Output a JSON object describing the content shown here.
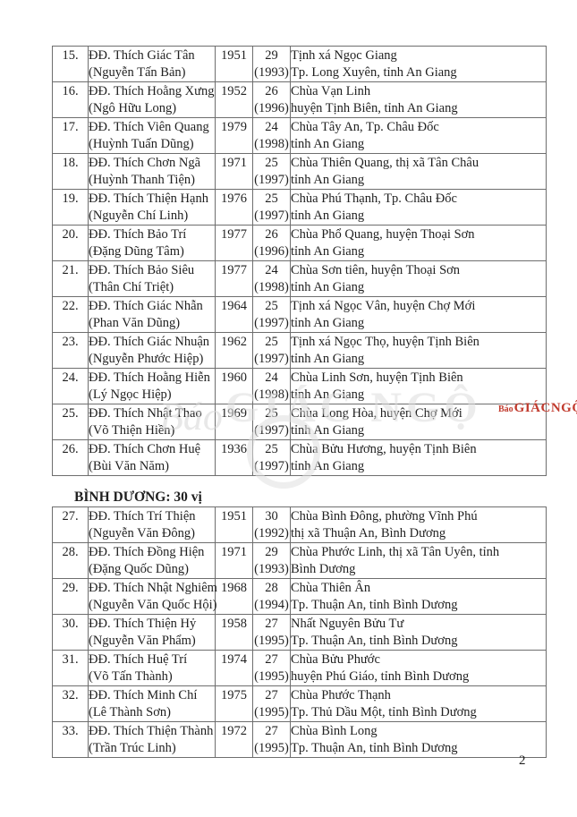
{
  "page": {
    "number": "2"
  },
  "colors": {
    "logo_red": "#c13b2e",
    "border_gray": "#6e6e6e",
    "watermark_gray": "#dedede",
    "text": "#1f1f1f"
  },
  "watermark": {
    "bao": "Báo",
    "giacngo": "GIÁC NGỘ"
  },
  "logo": {
    "bao": "Báo",
    "giacngo": "GIÁCNGỘ"
  },
  "table": {
    "sections": [
      {
        "header": "",
        "rows": [
          {
            "no": "15.",
            "name": "ĐĐ. Thích Giác Tân",
            "secular_name": "(Nguyễn Tấn Bản)",
            "birth_year": "1951",
            "count": "29",
            "ord_year": "(1993)",
            "address_line1": "Tịnh xá Ngọc Giang",
            "address_line2": "Tp. Long Xuyên, tỉnh An Giang"
          },
          {
            "no": "16.",
            "name": "ĐĐ. Thích Hoằng Xưng",
            "secular_name": "(Ngô Hữu Long)",
            "birth_year": "1952",
            "count": "26",
            "ord_year": "(1996)",
            "address_line1": "Chùa Vạn Linh",
            "address_line2": "huyện Tịnh Biên, tỉnh An Giang"
          },
          {
            "no": "17.",
            "name": "ĐĐ. Thích Viên Quang",
            "secular_name": "(Huỳnh Tuấn Dũng)",
            "birth_year": "1979",
            "count": "24",
            "ord_year": "(1998)",
            "address_line1": "Chùa Tây An, Tp. Châu Đốc",
            "address_line2": "tỉnh An Giang"
          },
          {
            "no": "18.",
            "name": "ĐĐ. Thích Chơn Ngã",
            "secular_name": "(Huỳnh Thanh Tiện)",
            "birth_year": "1971",
            "count": "25",
            "ord_year": "(1997)",
            "address_line1": "Chùa Thiên Quang, thị xã Tân Châu",
            "address_line2": "tỉnh An Giang"
          },
          {
            "no": "19.",
            "name": "ĐĐ. Thích Thiện Hạnh",
            "secular_name": "(Nguyễn Chí Linh)",
            "birth_year": "1976",
            "count": "25",
            "ord_year": "(1997)",
            "address_line1": "Chùa Phú Thạnh, Tp. Châu Đốc",
            "address_line2": "tỉnh An Giang"
          },
          {
            "no": "20.",
            "name": "ĐĐ. Thích Bảo Trí",
            "secular_name": "(Đặng Dũng Tâm)",
            "birth_year": "1977",
            "count": "26",
            "ord_year": "(1996)",
            "address_line1": "Chùa Phổ Quang, huyện Thoại Sơn",
            "address_line2": "tỉnh An Giang"
          },
          {
            "no": "21.",
            "name": "ĐĐ. Thích Bảo Siêu",
            "secular_name": "(Thân Chí Triệt)",
            "birth_year": "1977",
            "count": "24",
            "ord_year": "(1998)",
            "address_line1": "Chùa Sơn tiên, huyện Thoại Sơn",
            "address_line2": "tỉnh An Giang"
          },
          {
            "no": "22.",
            "name": "ĐĐ. Thích Giác Nhẫn",
            "secular_name": "(Phan Văn Dũng)",
            "birth_year": "1964",
            "count": "25",
            "ord_year": "(1997)",
            "address_line1": "Tịnh xá Ngọc Vân, huyện Chợ Mới",
            "address_line2": "tỉnh An Giang"
          },
          {
            "no": "23.",
            "name": "ĐĐ. Thích Giác Nhuận",
            "secular_name": "(Nguyễn Phước Hiệp)",
            "birth_year": "1962",
            "count": "25",
            "ord_year": "(1997)",
            "address_line1": "Tịnh xá Ngọc Thọ, huyện Tịnh Biên",
            "address_line2": "tỉnh An Giang"
          },
          {
            "no": "24.",
            "name": "ĐĐ. Thích Hoằng Hiễn",
            "secular_name": "(Lý Ngọc Hiệp)",
            "birth_year": "1960",
            "count": "24",
            "ord_year": "(1998)",
            "address_line1": "Chùa Linh Sơn, huyện Tịnh Biên",
            "address_line2": "tỉnh An Giang"
          },
          {
            "no": "25.",
            "name": "ĐĐ. Thích Nhật Thao",
            "secular_name": "(Võ Thiện Hiền)",
            "birth_year": "1969",
            "count": "25",
            "ord_year": "(1997)",
            "address_line1": "Chùa Long Hòa, huyện Chợ Mới",
            "address_line2": "tỉnh An Giang"
          },
          {
            "no": "26.",
            "name": "ĐĐ. Thích Chơn Huệ",
            "secular_name": "(Bùi Văn Năm)",
            "birth_year": "1936",
            "count": "25",
            "ord_year": "(1997)",
            "address_line1": "Chùa Bửu Hương, huyện Tịnh Biên",
            "address_line2": "tỉnh An Giang"
          }
        ]
      },
      {
        "header": "BÌNH DƯƠNG: 30 vị",
        "rows": [
          {
            "no": "27.",
            "name": "ĐĐ. Thích Trí Thiện",
            "secular_name": "(Nguyễn Văn Đông)",
            "birth_year": "1951",
            "count": "30",
            "ord_year": "(1992)",
            "address_line1": "Chùa Bình Đông, phường Vĩnh Phú",
            "address_line2": "thị xã Thuận An, Bình Dương"
          },
          {
            "no": "28.",
            "name": "ĐĐ. Thích Đồng Hiện",
            "secular_name": "(Đặng Quốc Dũng)",
            "birth_year": "1971",
            "count": "29",
            "ord_year": "(1993)",
            "address_line1": "Chùa Phước Linh, thị xã Tân Uyên, tỉnh",
            "address_line2": "Bình Dương"
          },
          {
            "no": "29.",
            "name": "ĐĐ. Thích Nhật Nghiêm",
            "secular_name": "(Nguyễn Văn Quốc Hội)",
            "birth_year": "1968",
            "count": "28",
            "ord_year": "(1994)",
            "address_line1": "Chùa Thiên Ân",
            "address_line2": "Tp. Thuận An, tỉnh Bình Dương"
          },
          {
            "no": "30.",
            "name": "ĐĐ. Thích Thiện Hỷ",
            "secular_name": "(Nguyễn Văn Phẩm)",
            "birth_year": "1958",
            "count": "27",
            "ord_year": "(1995)",
            "address_line1": "Nhất Nguyên Bửu Tư",
            "address_line2": "Tp. Thuận An, tỉnh Bình Dương"
          },
          {
            "no": "31.",
            "name": "ĐĐ. Thích Huệ Trí",
            "secular_name": "(Võ Tấn Thành)",
            "birth_year": "1974",
            "count": "27",
            "ord_year": "(1995)",
            "address_line1": "Chùa Bửu Phước",
            "address_line2": "huyện Phú Giáo, tỉnh Bình Dương"
          },
          {
            "no": "32.",
            "name": "ĐĐ. Thích Minh Chí",
            "secular_name": "(Lê Thành Sơn)",
            "birth_year": "1975",
            "count": "27",
            "ord_year": "(1995)",
            "address_line1": "Chùa Phước Thạnh",
            "address_line2": "Tp. Thủ Dầu Một, tỉnh Bình Dương"
          },
          {
            "no": "33.",
            "name": "ĐĐ. Thích Thiện Thành",
            "secular_name": "(Trần Trúc Linh)",
            "birth_year": "1972",
            "count": "27",
            "ord_year": "(1995)",
            "address_line1": "Chùa Bình Long",
            "address_line2": "Tp. Thuận An, tỉnh Bình Dương"
          }
        ]
      }
    ]
  }
}
